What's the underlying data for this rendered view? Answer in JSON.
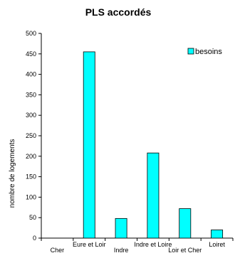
{
  "chart_data": {
    "type": "bar",
    "title": "PLS accordés",
    "xlabel": "",
    "ylabel": "nombre de logements",
    "categories": [
      "Cher",
      "Eure et Loir",
      "Indre",
      "Indre et Loire",
      "Loir et Cher",
      "Loiret"
    ],
    "series": [
      {
        "name": "besoins",
        "values": [
          0,
          455,
          48,
          208,
          72,
          20
        ],
        "color": "#00ffff"
      }
    ],
    "ylim": [
      0,
      500
    ],
    "yticks": [
      0,
      50,
      100,
      150,
      200,
      250,
      300,
      350,
      400,
      450,
      500
    ],
    "grid": false,
    "legend": "top-right"
  }
}
